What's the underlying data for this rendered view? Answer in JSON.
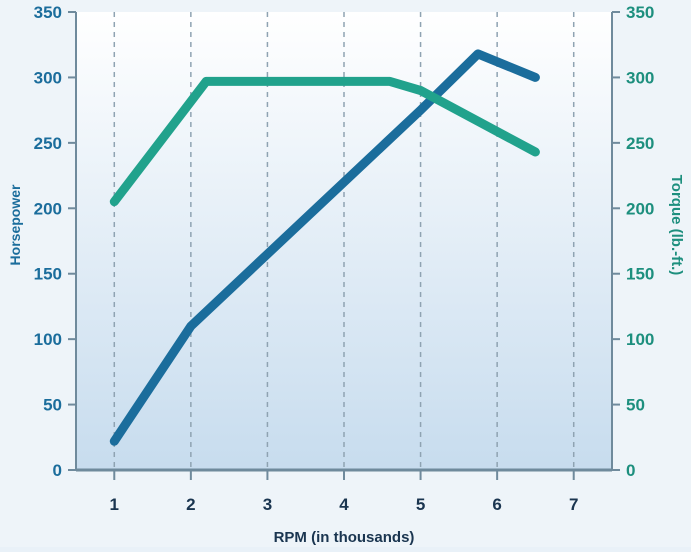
{
  "chart_data": {
    "type": "line",
    "xlabel": "RPM (in thousands)",
    "ylabel_left": "Horsepower",
    "ylabel_right": "Torque (lb.-ft.)",
    "x_ticks": [
      "1",
      "2",
      "3",
      "4",
      "5",
      "6",
      "7"
    ],
    "y_ticks": [
      "0",
      "50",
      "100",
      "150",
      "200",
      "250",
      "300",
      "350"
    ],
    "xlim": [
      0.5,
      7.5
    ],
    "ylim": [
      0,
      350
    ],
    "grid": "vertical dashed",
    "series": [
      {
        "name": "Horsepower",
        "axis": "left",
        "color": "#1b6d9c",
        "x": [
          1,
          2,
          3,
          4,
          5,
          5.75,
          6.5
        ],
        "y": [
          22,
          110,
          165,
          220,
          275,
          318,
          300
        ]
      },
      {
        "name": "Torque",
        "axis": "right",
        "color": "#21a28c",
        "x": [
          1,
          2.2,
          3,
          4,
          4.6,
          5,
          6.5
        ],
        "y": [
          205,
          297,
          297,
          297,
          297,
          290,
          243
        ]
      }
    ]
  }
}
